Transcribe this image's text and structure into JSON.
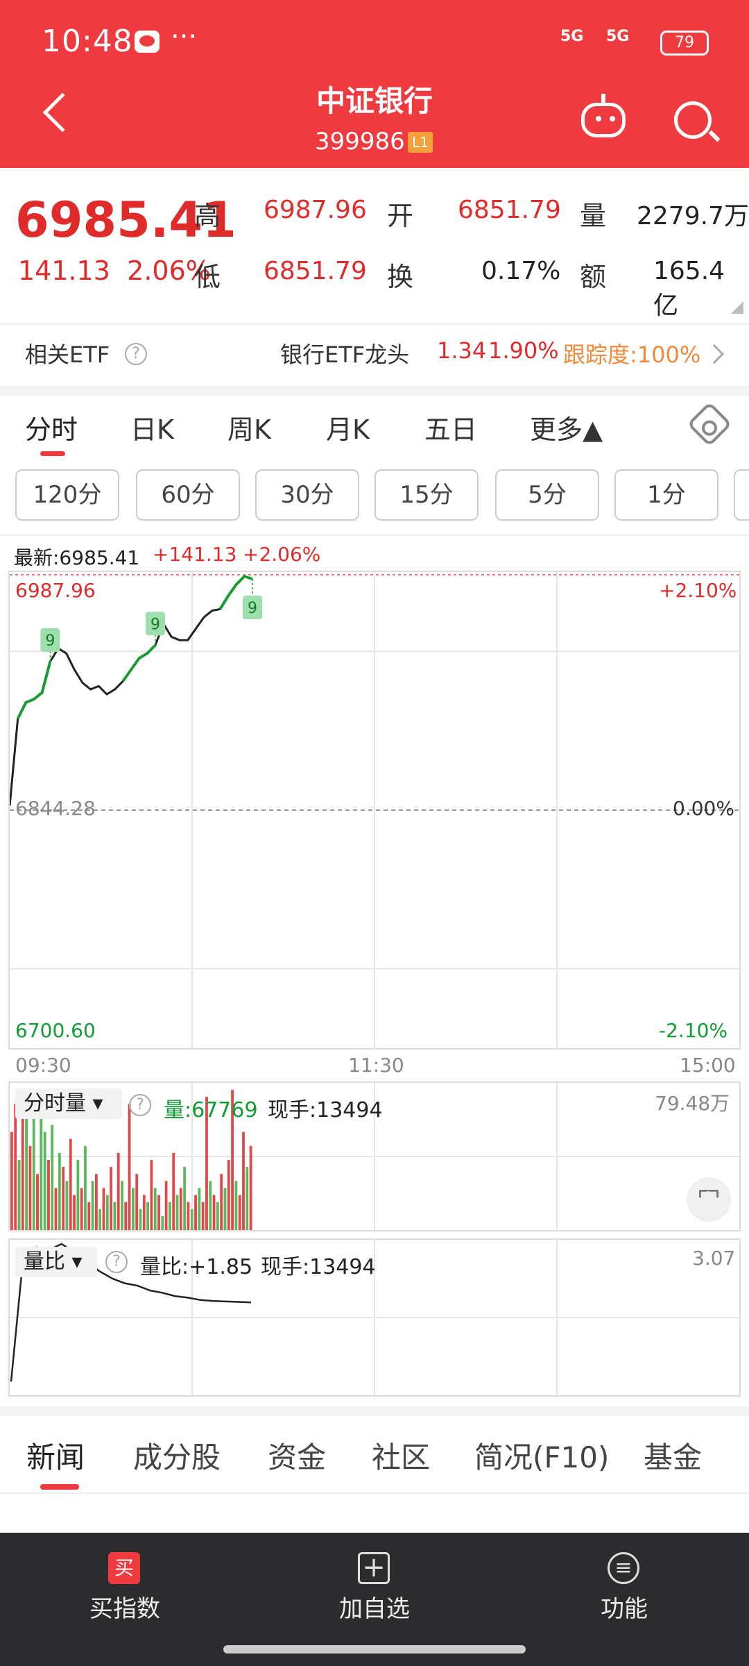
{
  "status_bar": {
    "time": "10:48",
    "dots": "···",
    "signal1": "5G",
    "signal2": "5G",
    "battery": "79"
  },
  "header": {
    "title": "中证银行",
    "code": "399986",
    "level": "L1"
  },
  "quote": {
    "price": "6985.41",
    "change": "141.13",
    "change_pct": "2.06%",
    "high_label": "高",
    "high": "6987.96",
    "low_label": "低",
    "low": "6851.79",
    "open_label": "开",
    "open": "6851.79",
    "turnover_label": "换",
    "turnover": "0.17%",
    "volume_label": "量",
    "volume": "2279.7万",
    "amount_label": "额",
    "amount": "165.4亿"
  },
  "etf": {
    "label": "相关ETF",
    "name": "银行ETF龙头",
    "price": "1.34",
    "pct": "1.90%",
    "tracking": "跟踪度:100%"
  },
  "tabs": [
    "分时",
    "日K",
    "周K",
    "月K",
    "五日",
    "更多▲"
  ],
  "intervals": [
    "120分",
    "60分",
    "30分",
    "15分",
    "5分",
    "1分"
  ],
  "chart_info": {
    "latest": "最新:6985.41",
    "change": "+141.13",
    "pct": "+2.06%"
  },
  "chart_data": {
    "type": "line",
    "title": "",
    "y_high": "6987.96",
    "y_mid": "6844.28",
    "y_low": "6700.60",
    "pct_high": "+2.10%",
    "pct_mid": "0.00%",
    "pct_low": "-2.10%",
    "x_ticks": [
      "09:30",
      "11:30",
      "15:00"
    ],
    "ylim": [
      6700.6,
      6987.96
    ],
    "series": [
      {
        "values": [
          6847,
          6900,
          6910,
          6912,
          6916,
          6935,
          6943,
          6940,
          6930,
          6922,
          6918,
          6920,
          6915,
          6918,
          6923,
          6930,
          6937,
          6940,
          6945,
          6958,
          6950,
          6948,
          6948,
          6955,
          6962,
          6966,
          6967,
          6975,
          6982,
          6987,
          6985.41
        ]
      }
    ],
    "markers": [
      "9",
      "9",
      "9"
    ]
  },
  "volume": {
    "label": "分时量",
    "vol": "量:67769",
    "hand": "现手:13494",
    "max": "79.48万",
    "bars": [
      0.7,
      0.9,
      0.5,
      0.8,
      0.95,
      0.6,
      0.85,
      0.4,
      0.9,
      0.7,
      0.5,
      0.75,
      0.3,
      0.55,
      0.45,
      0.35,
      0.65,
      0.25,
      0.5,
      0.3,
      0.6,
      0.2,
      0.35,
      0.4,
      0.15,
      0.3,
      0.25,
      0.45,
      0.2,
      0.55,
      0.35,
      0.2,
      0.9,
      0.3,
      0.4,
      0.15,
      0.25,
      0.2,
      0.5,
      0.3,
      0.25,
      0.1,
      0.35,
      0.2,
      0.55,
      0.25,
      0.3,
      0.45,
      0.2,
      0.15,
      0.25,
      0.3,
      0.2,
      0.95,
      0.35,
      0.25,
      0.2,
      0.4,
      0.3,
      0.5,
      1.0,
      0.35,
      0.25,
      0.7,
      0.45,
      0.6
    ],
    "colors": [
      "r",
      "r",
      "g",
      "r",
      "g",
      "r",
      "g",
      "r",
      "g",
      "g",
      "r",
      "g",
      "r",
      "g",
      "r",
      "g",
      "r",
      "r",
      "g",
      "r",
      "g",
      "r",
      "g",
      "r",
      "g",
      "r",
      "g",
      "r",
      "g",
      "r",
      "g",
      "r",
      "r",
      "g",
      "r",
      "g",
      "r",
      "g",
      "r",
      "g",
      "r",
      "g",
      "r",
      "g",
      "r",
      "g",
      "r",
      "g",
      "r",
      "g",
      "r",
      "g",
      "r",
      "r",
      "g",
      "r",
      "g",
      "r",
      "g",
      "r",
      "r",
      "g",
      "r",
      "r",
      "g",
      "r"
    ]
  },
  "ratio": {
    "label": "量比",
    "value": "量比:+1.85",
    "hand": "现手:13494",
    "max": "3.07",
    "values": [
      0.2,
      2.9,
      3.0,
      2.95,
      3.07,
      2.9,
      2.7,
      2.5,
      2.35,
      2.25,
      2.2,
      2.1,
      2.05,
      1.98,
      1.95,
      1.9,
      1.88,
      1.87,
      1.86,
      1.85
    ]
  },
  "news_tabs": [
    "新闻",
    "成分股",
    "资金",
    "社区",
    "简况(F10)",
    "基金"
  ],
  "bottom_bar": {
    "buy": "买指数",
    "buy_icon": "买",
    "watch": "加自选",
    "watch_icon": "+",
    "func": "功能",
    "func_icon": "≡"
  }
}
